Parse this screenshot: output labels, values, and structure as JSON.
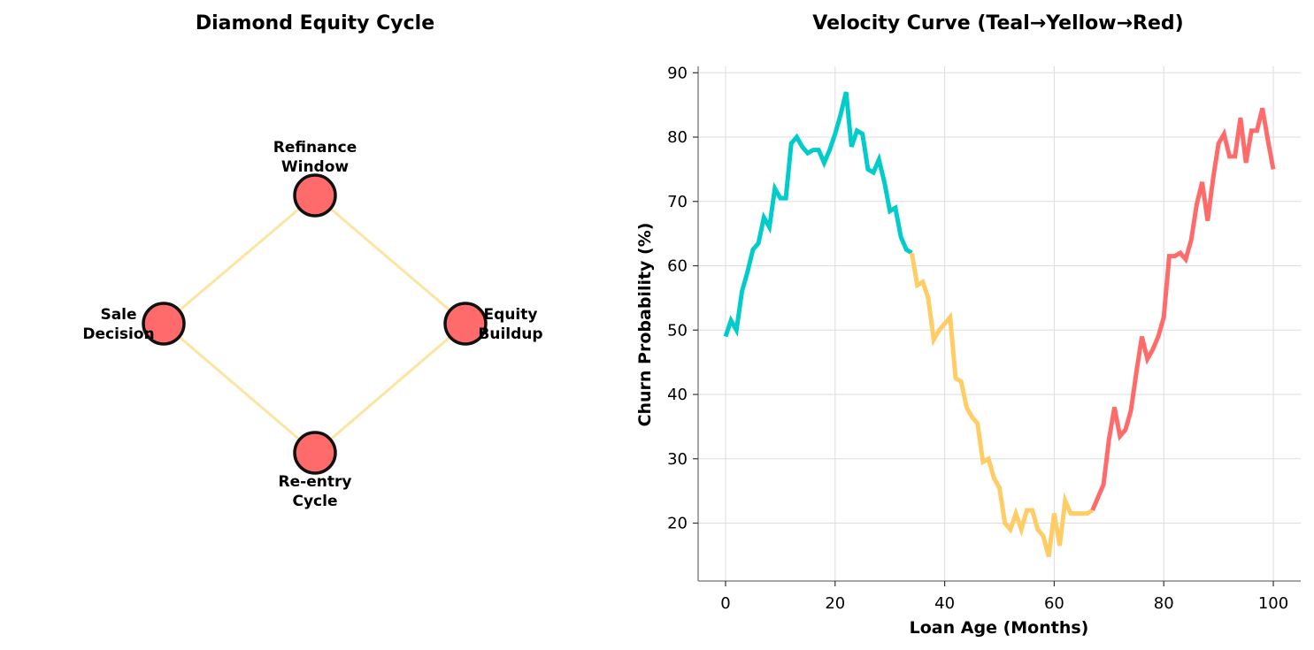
{
  "chart_data": [
    {
      "type": "diagram",
      "title": "Diamond Equity Cycle",
      "edge_color": "#fce4a1",
      "node_color": "#ff6b6b",
      "node_stroke": "#111111",
      "nodes": [
        {
          "id": "refinance",
          "label_lines": [
            "Refinance",
            "Window"
          ]
        },
        {
          "id": "equity",
          "label_lines": [
            "Equity",
            "Buildup"
          ]
        },
        {
          "id": "reentry",
          "label_lines": [
            "Re-entry",
            "Cycle"
          ]
        },
        {
          "id": "sale",
          "label_lines": [
            "Sale",
            "Decision"
          ]
        }
      ],
      "edges": [
        [
          "refinance",
          "equity"
        ],
        [
          "equity",
          "reentry"
        ],
        [
          "reentry",
          "sale"
        ],
        [
          "sale",
          "refinance"
        ]
      ]
    },
    {
      "type": "line",
      "title": "Velocity Curve (Teal→Yellow→Red)",
      "xlabel": "Loan Age (Months)",
      "ylabel": "Churn Probability (%)",
      "xlim": [
        -5,
        105
      ],
      "ylim": [
        11,
        91
      ],
      "xticks": [
        0,
        20,
        40,
        60,
        80,
        100
      ],
      "yticks": [
        20,
        30,
        40,
        50,
        60,
        70,
        80,
        90
      ],
      "grid": true,
      "colors": {
        "teal": "#00cccc",
        "yellow": "#ffcc66",
        "red": "#ff6b6b"
      },
      "segments": [
        {
          "color_key": "teal",
          "from_index": 0,
          "to_index": 34
        },
        {
          "color_key": "yellow",
          "from_index": 34,
          "to_index": 67
        },
        {
          "color_key": "red",
          "from_index": 67,
          "to_index": 100
        }
      ],
      "x": [
        0,
        1,
        2,
        3,
        4,
        5,
        6,
        7,
        8,
        9,
        10,
        11,
        12,
        13,
        14,
        15,
        16,
        17,
        18,
        19,
        20,
        21,
        22,
        23,
        24,
        25,
        26,
        27,
        28,
        29,
        30,
        31,
        32,
        33,
        34,
        35,
        36,
        37,
        38,
        39,
        40,
        41,
        42,
        43,
        44,
        45,
        46,
        47,
        48,
        49,
        50,
        51,
        52,
        53,
        54,
        55,
        56,
        57,
        58,
        59,
        60,
        61,
        62,
        63,
        64,
        65,
        66,
        67,
        68,
        69,
        70,
        71,
        72,
        73,
        74,
        75,
        76,
        77,
        78,
        79,
        80,
        81,
        82,
        83,
        84,
        85,
        86,
        87,
        88,
        89,
        90,
        91,
        92,
        93,
        94,
        95,
        96,
        97,
        98,
        99,
        100
      ],
      "y": [
        49,
        51.5,
        50,
        56,
        59,
        62.5,
        63.5,
        67.5,
        66,
        72,
        70.5,
        70.5,
        79,
        80,
        78.5,
        77.5,
        78,
        78,
        76,
        78,
        80.5,
        83.5,
        87,
        78.5,
        81,
        80.5,
        75,
        74.5,
        76.5,
        73,
        68.5,
        69,
        64.5,
        62.5,
        62,
        57,
        57.5,
        55,
        48.5,
        50,
        51,
        52,
        42.5,
        42,
        38,
        36.5,
        35.5,
        29.5,
        30,
        27,
        25.5,
        20,
        19,
        21.5,
        19,
        22,
        22,
        19,
        18,
        14.8,
        21.5,
        16.5,
        23.5,
        21.5,
        21.5,
        21.5,
        21.5,
        22,
        24,
        26,
        33,
        38,
        33.5,
        34.5,
        37.5,
        43.5,
        49,
        45.5,
        47,
        49,
        52,
        61.5,
        61.5,
        62,
        61,
        64,
        69.5,
        73,
        67,
        73.5,
        79,
        80.5,
        77,
        77,
        83,
        76,
        81,
        81,
        84.5,
        79.5,
        75
      ]
    }
  ]
}
